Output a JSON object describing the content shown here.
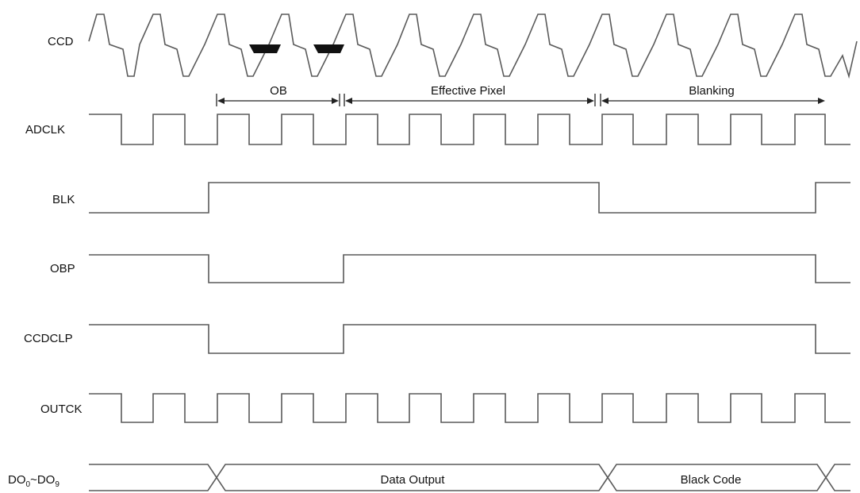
{
  "signals": {
    "ccd": "CCD",
    "adclk": "ADCLK",
    "blk": "BLK",
    "obp": "OBP",
    "ccdclp": "CCDCLP",
    "outck": "OUTCK",
    "do_prefix": "DO",
    "do_sub1": "0",
    "do_sep": "~DO",
    "do_sub2": "9"
  },
  "periods": {
    "ob": "OB",
    "effective": "Effective Pixel",
    "blanking": "Blanking"
  },
  "bus": {
    "data": "Data Output",
    "black": "Black Code"
  },
  "colors": {
    "wave": "#5a5a5a",
    "fill": "#111111",
    "text": "#111111"
  }
}
